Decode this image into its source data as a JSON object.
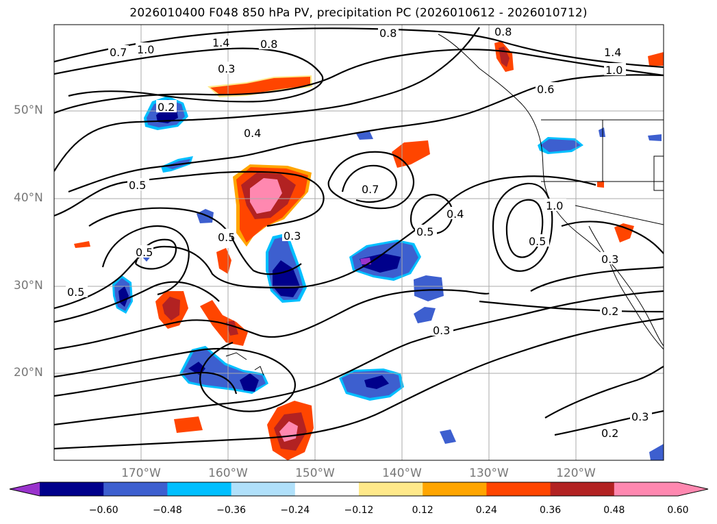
{
  "title": "2026010400 F048 850 hPa PV, precipitation PC (2026010612 - 2026010712)",
  "map": {
    "lat_labels": [
      "50°N",
      "40°N",
      "30°N",
      "20°N"
    ],
    "lon_labels": [
      "170°W",
      "160°W",
      "150°W",
      "140°W",
      "130°W",
      "120°W"
    ],
    "contour_labels": [
      "0.7",
      "1.0",
      "1.4",
      "0.8",
      "0.3",
      "0.8",
      "0.8",
      "1.4",
      "1.0",
      "0.6",
      "0.2",
      "0.4",
      "0.5",
      "0.7",
      "0.5",
      "0.3",
      "0.5",
      "0.4",
      "0.5",
      "1.0",
      "0.5",
      "0.5",
      "0.3",
      "0.2",
      "0.3",
      "0.2",
      "0.3"
    ],
    "shading_colors": {
      "negative": [
        "#9933cc",
        "#00008b",
        "#3d5fcf",
        "#00bfff",
        "#b0e0fa"
      ],
      "positive": [
        "#ffe98a",
        "#ffa500",
        "#ff4500",
        "#b22222",
        "#ff88b0"
      ]
    }
  },
  "colorbar": {
    "ticks": [
      "−0.60",
      "−0.48",
      "−0.36",
      "−0.24",
      "−0.12",
      "0.12",
      "0.24",
      "0.36",
      "0.48",
      "0.60"
    ],
    "colors": [
      "#9933cc",
      "#00008b",
      "#3d5fcf",
      "#00bfff",
      "#b0e0fa",
      "#ffffff",
      "#ffe98a",
      "#ffa500",
      "#ff4500",
      "#b22222",
      "#ff88b0",
      "#ff88b0"
    ]
  }
}
